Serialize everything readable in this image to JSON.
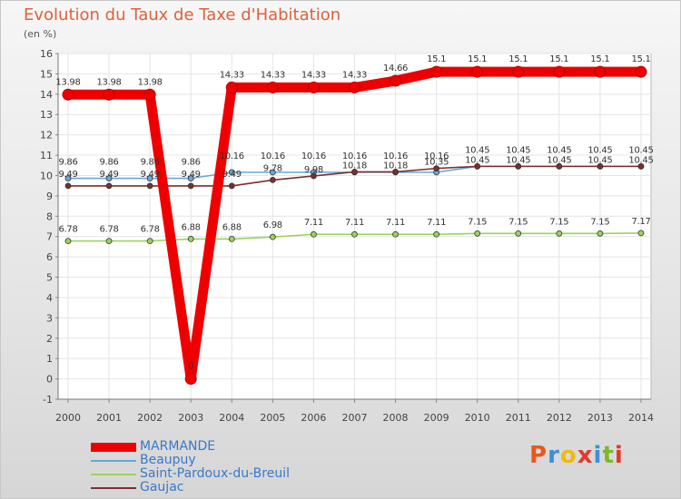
{
  "header": {
    "title": "Evolution du Taux de Taxe d'Habitation",
    "unit": "(en %)"
  },
  "logo": {
    "text": "Proxiti",
    "letters": [
      "P",
      "r",
      "o",
      "x",
      "i",
      "t",
      "i"
    ],
    "colors": [
      "#e8591a",
      "#3d8fd6",
      "#f2b90e",
      "#e23a2b",
      "#3d8fd6",
      "#7ab829",
      "#e23a2b"
    ]
  },
  "chart_data": {
    "type": "line",
    "title": "Evolution du Taux de Taxe d'Habitation",
    "ylabel": "(en %)",
    "xlabel": "",
    "x": [
      "2000",
      "2001",
      "2002",
      "2003",
      "2004",
      "2005",
      "2006",
      "2007",
      "2008",
      "2009",
      "2010",
      "2011",
      "2012",
      "2013",
      "2014"
    ],
    "ylim": [
      -1,
      16
    ],
    "yticks": [
      "-1",
      "0",
      "1",
      "2",
      "3",
      "4",
      "5",
      "6",
      "7",
      "8",
      "9",
      "10",
      "11",
      "12",
      "13",
      "14",
      "15",
      "16"
    ],
    "grid": true,
    "series": [
      {
        "name": "MARMANDE",
        "color": "#ee0000",
        "values": [
          13.98,
          13.98,
          13.98,
          0,
          14.33,
          14.33,
          14.33,
          14.33,
          14.66,
          15.1,
          15.1,
          15.1,
          15.1,
          15.1,
          15.1
        ],
        "labels": [
          "13.98",
          "13.98",
          "13.98",
          "0",
          "14.33",
          "14.33",
          "14.33",
          "14.33",
          "14.66",
          "15.1",
          "15.1",
          "15.1",
          "15.1",
          "15.1",
          "15.1"
        ]
      },
      {
        "name": "Beaupuy",
        "color": "#6aa6d8",
        "values": [
          9.86,
          9.86,
          9.86,
          9.86,
          10.16,
          10.16,
          10.16,
          10.16,
          10.16,
          10.16,
          10.45,
          10.45,
          10.45,
          10.45,
          10.45
        ],
        "labels": [
          "9.86",
          "9.86",
          "9.86",
          "9.86",
          "10.16",
          "10.16",
          "10.16",
          "10.16",
          "10.16",
          "10.16",
          "10.45",
          "10.45",
          "10.45",
          "10.45",
          "10.45"
        ]
      },
      {
        "name": "Saint-Pardoux-du-Breuil",
        "color": "#99d35a",
        "values": [
          6.78,
          6.78,
          6.78,
          6.88,
          6.88,
          6.98,
          7.11,
          7.11,
          7.11,
          7.11,
          7.15,
          7.15,
          7.15,
          7.15,
          7.17
        ],
        "labels": [
          "6.78",
          "6.78",
          "6.78",
          "6.88",
          "6.88",
          "6.98",
          "7.11",
          "7.11",
          "7.11",
          "7.11",
          "7.15",
          "7.15",
          "7.15",
          "7.15",
          "7.17"
        ]
      },
      {
        "name": "Gaujac",
        "color": "#7a2f2f",
        "values": [
          9.49,
          9.49,
          9.49,
          9.49,
          9.49,
          9.78,
          9.98,
          10.18,
          10.18,
          10.35,
          10.45,
          10.45,
          10.45,
          10.45,
          10.45
        ],
        "labels": [
          "9.49",
          "9.49",
          "9.49",
          "9.49",
          "9.49",
          "9.78",
          "9.98",
          "10.18",
          "10.18",
          "10.35",
          "10.45",
          "10.45",
          "10.45",
          "10.45",
          "10.45"
        ]
      }
    ],
    "legend": {
      "position": "bottom-left",
      "entries": [
        "MARMANDE",
        "Beaupuy",
        "Saint-Pardoux-du-Breuil",
        "Gaujac"
      ]
    }
  }
}
